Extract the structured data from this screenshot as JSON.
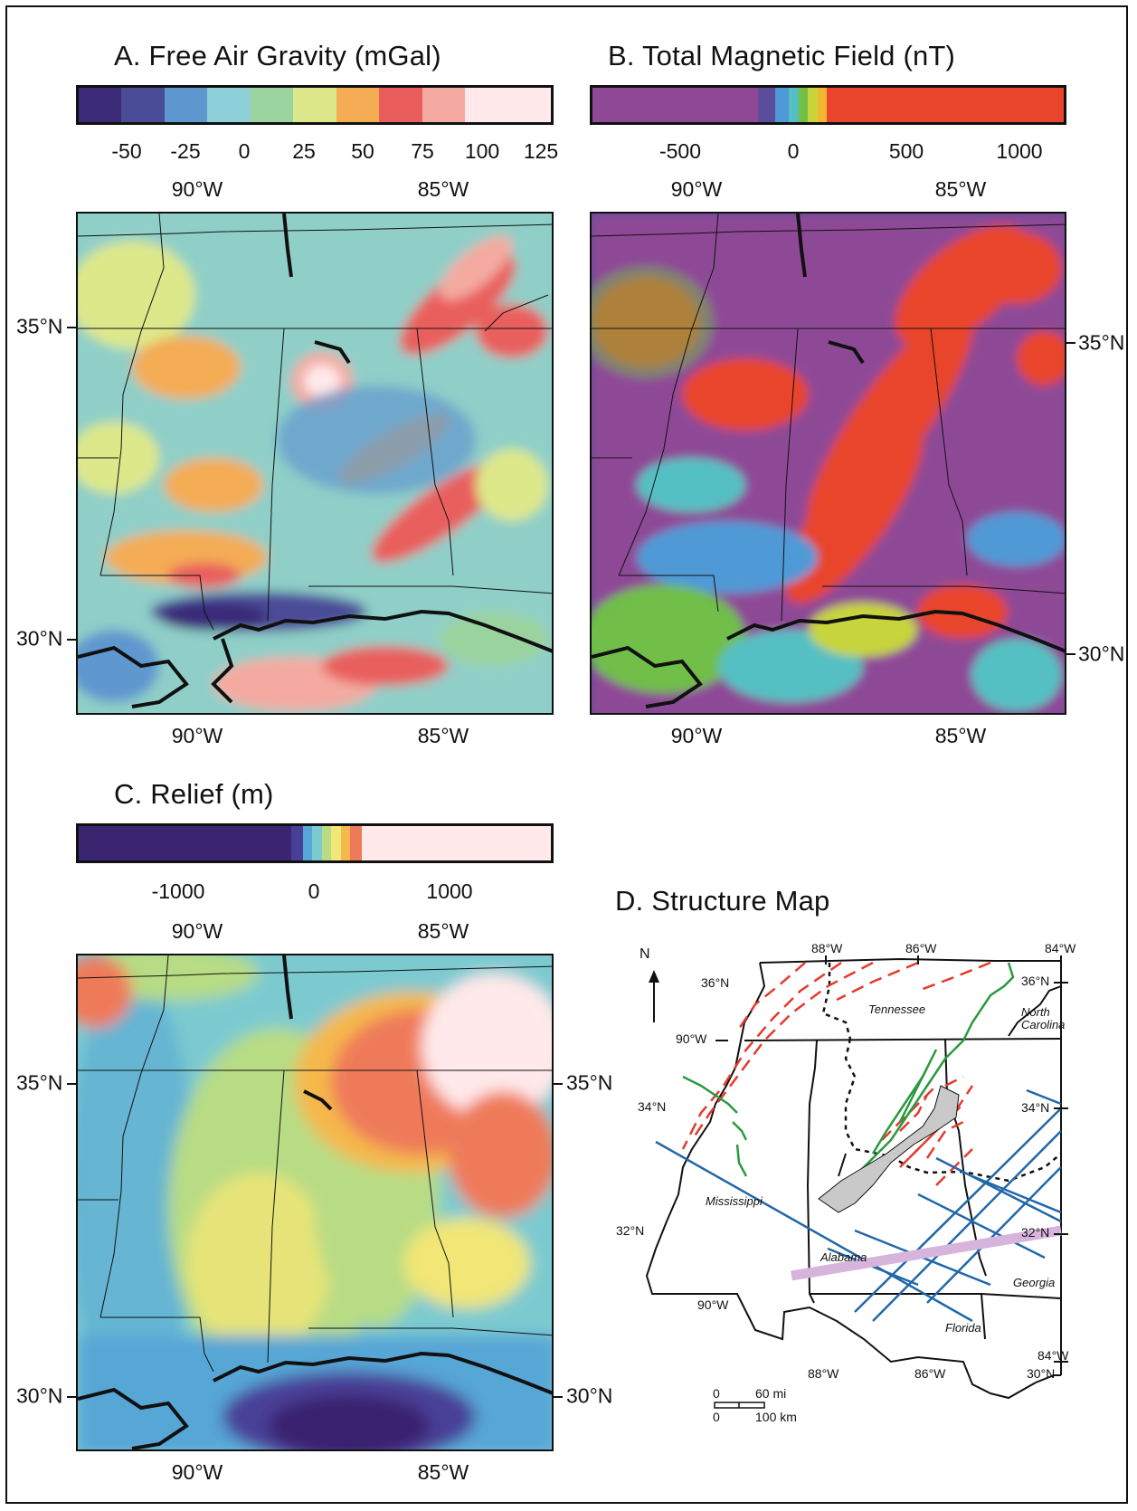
{
  "panel_a": {
    "title": "A.  Free Air Gravity (mGal)",
    "ticks": [
      "-50",
      "-25",
      "0",
      "25",
      "50",
      "75",
      "100",
      "125"
    ],
    "colors": [
      "#3b2a78",
      "#4b4c98",
      "#5f97cf",
      "#8dcfd8",
      "#9bd39e",
      "#dde88a",
      "#f4ac55",
      "#e95e5d",
      "#f4aaa0",
      "#ffe9ea",
      "#ffe9ea"
    ],
    "top_lon": [
      "90°W",
      "85°W"
    ],
    "bottom_lon": [
      "90°W",
      "85°W"
    ],
    "left_lat": [
      "35°N",
      "30°N"
    ]
  },
  "panel_b": {
    "title": "B.  Total Magnetic Field (nT)",
    "ticks": [
      "-500",
      "0",
      "500",
      "1000"
    ],
    "colors": [
      "#8e4896",
      "#5b4c9c",
      "#4f9ad6",
      "#55c0c3",
      "#71be48",
      "#c8d43a",
      "#f3b632",
      "#e8452c"
    ],
    "top_lon": [
      "90°W",
      "85°W"
    ],
    "bottom_lon": [
      "90°W",
      "85°W"
    ],
    "right_lat": [
      "35°N",
      "30°N"
    ]
  },
  "panel_c": {
    "title": "C.  Relief (m)",
    "ticks": [
      "-1000",
      "0",
      "1000"
    ],
    "colors": [
      "#3b2470",
      "#4a3f98",
      "#56a6d6",
      "#7ccad0",
      "#b7dc84",
      "#f1e676",
      "#f5b84c",
      "#ef7a5a",
      "#ffe9ea"
    ],
    "top_lon": [
      "90°W",
      "85°W"
    ],
    "bottom_lon": [
      "90°W",
      "85°W"
    ],
    "left_lat": [
      "35°N",
      "30°N"
    ],
    "right_lat": [
      "35°N",
      "30°N"
    ]
  },
  "panel_d": {
    "title": "D.  Structure Map",
    "north": "N",
    "top_lon": [
      "88°W",
      "86°W",
      "84°W"
    ],
    "lat_labels": [
      "36°N",
      "34°N",
      "32°N",
      "36°N",
      "34°N",
      "32°N",
      "30°N"
    ],
    "lon_labels": [
      "90°W",
      "90°W",
      "88°W",
      "86°W",
      "84°W"
    ],
    "states": [
      "Tennessee",
      "North Carolina",
      "Mississippi",
      "Alabama",
      "Georgia",
      "Florida"
    ],
    "scale": {
      "mi0": "0",
      "mi": "60 mi",
      "km0": "0",
      "km": "100 km"
    }
  }
}
